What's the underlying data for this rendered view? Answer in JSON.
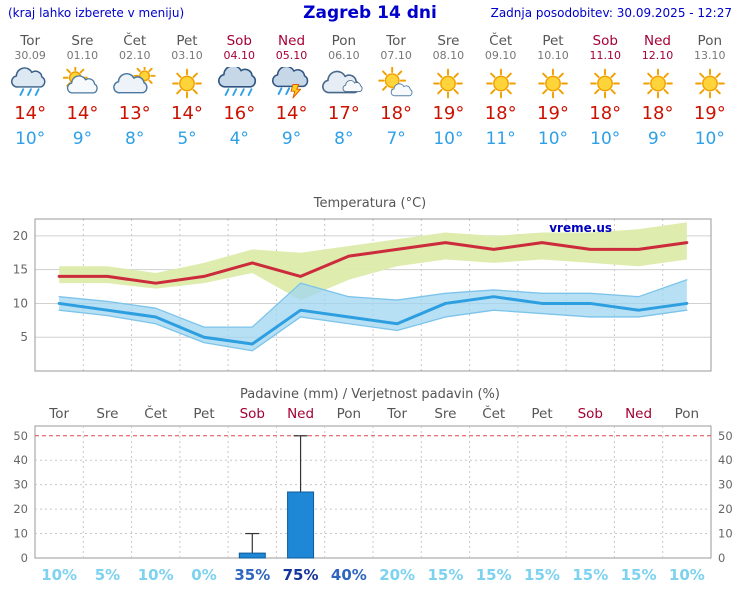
{
  "header": {
    "left_note": "(kraj lahko izberete v meniju)",
    "title": "Zagreb 14 dni",
    "updated": "Zadnja posodobitev: 30.09.2025 - 12:27"
  },
  "watermark": "vreme.us",
  "colors": {
    "header_blue": "#0000cc",
    "weekend_red": "#a50034",
    "weekday_gray": "#555555",
    "high_temp_red": "#cc1100",
    "low_temp_blue": "#2da0e8",
    "temp_line_red": "#cc2b3c",
    "temp_line_blue": "#2d9fe0",
    "band_green": "#dcebaa",
    "band_blue": "#9fd6f2",
    "bar_blue": "#1f88d6",
    "prob_low": "#7dd2ef",
    "prob_mid": "#2f67c0",
    "prob_high": "#15359d"
  },
  "days": [
    {
      "name": "Tor",
      "date": "30.09",
      "weekend": false,
      "icon": "rain",
      "high": "14°",
      "low": "10°"
    },
    {
      "name": "Sre",
      "date": "01.10",
      "weekend": false,
      "icon": "partly-cloudy",
      "high": "14°",
      "low": "9°"
    },
    {
      "name": "Čet",
      "date": "02.10",
      "weekend": false,
      "icon": "mostly-cloudy",
      "high": "13°",
      "low": "8°"
    },
    {
      "name": "Pet",
      "date": "03.10",
      "weekend": false,
      "icon": "sunny",
      "high": "14°",
      "low": "5°"
    },
    {
      "name": "Sob",
      "date": "04.10",
      "weekend": true,
      "icon": "heavy-rain",
      "high": "16°",
      "low": "4°"
    },
    {
      "name": "Ned",
      "date": "05.10",
      "weekend": true,
      "icon": "storm",
      "high": "14°",
      "low": "9°"
    },
    {
      "name": "Pon",
      "date": "06.10",
      "weekend": false,
      "icon": "cloudy",
      "high": "17°",
      "low": "8°"
    },
    {
      "name": "Tor",
      "date": "07.10",
      "weekend": false,
      "icon": "mostly-sunny",
      "high": "18°",
      "low": "7°"
    },
    {
      "name": "Sre",
      "date": "08.10",
      "weekend": false,
      "icon": "sunny",
      "high": "19°",
      "low": "10°"
    },
    {
      "name": "Čet",
      "date": "09.10",
      "weekend": false,
      "icon": "sunny",
      "high": "18°",
      "low": "11°"
    },
    {
      "name": "Pet",
      "date": "10.10",
      "weekend": false,
      "icon": "sunny",
      "high": "19°",
      "low": "10°"
    },
    {
      "name": "Sob",
      "date": "11.10",
      "weekend": true,
      "icon": "sunny",
      "high": "18°",
      "low": "10°"
    },
    {
      "name": "Ned",
      "date": "12.10",
      "weekend": true,
      "icon": "sunny",
      "high": "18°",
      "low": "9°"
    },
    {
      "name": "Pon",
      "date": "13.10",
      "weekend": false,
      "icon": "sunny",
      "high": "19°",
      "low": "10°"
    }
  ],
  "chart_data": [
    {
      "type": "line",
      "title": "Temperatura (°C)",
      "categories": [
        "Tor 30.09",
        "Sre 01.10",
        "Čet 02.10",
        "Pet 03.10",
        "Sob 04.10",
        "Ned 05.10",
        "Pon 06.10",
        "Tor 07.10",
        "Sre 08.10",
        "Čet 09.10",
        "Pet 10.10",
        "Sob 11.10",
        "Ned 12.10",
        "Pon 13.10"
      ],
      "series": [
        {
          "name": "max",
          "color": "#cc2b3c",
          "values": [
            14,
            14,
            13,
            14,
            16,
            14,
            17,
            18,
            19,
            18,
            19,
            18,
            18,
            19
          ]
        },
        {
          "name": "max_range_upper",
          "values": [
            15.5,
            15.5,
            14.5,
            16,
            18,
            17.5,
            18.5,
            19.5,
            20.5,
            20,
            20.5,
            20.5,
            21,
            22
          ]
        },
        {
          "name": "max_range_lower",
          "values": [
            13,
            13,
            12.2,
            13,
            14.5,
            10.5,
            13.5,
            15.5,
            16.5,
            16,
            16.5,
            16,
            15.5,
            16.5
          ]
        },
        {
          "name": "min",
          "color": "#2d9fe0",
          "values": [
            10,
            9,
            8,
            5,
            4,
            9,
            8,
            7,
            10,
            11,
            10,
            10,
            9,
            10
          ]
        },
        {
          "name": "min_range_upper",
          "values": [
            11,
            10.3,
            9.3,
            6.5,
            6.5,
            13,
            11,
            10.5,
            11.5,
            12,
            11.5,
            11.5,
            11,
            13.5
          ]
        },
        {
          "name": "min_range_lower",
          "values": [
            9,
            8.2,
            7,
            4.2,
            3,
            8,
            7,
            6,
            8,
            9,
            8.5,
            8,
            8,
            9
          ]
        }
      ],
      "ylim": [
        0,
        22.5
      ],
      "yticks": [
        5,
        10,
        15,
        20
      ],
      "grid": true,
      "legend": "none",
      "watermark": "vreme.us"
    },
    {
      "type": "bar",
      "title": "Padavine (mm) / Verjetnost padavin (%)",
      "categories": [
        "Tor",
        "Sre",
        "Čet",
        "Pet",
        "Sob",
        "Ned",
        "Pon",
        "Tor",
        "Sre",
        "Čet",
        "Pet",
        "Sob",
        "Ned",
        "Pon"
      ],
      "values": [
        0,
        0,
        0,
        0,
        2,
        27,
        0,
        0,
        0,
        0,
        0,
        0,
        0,
        0
      ],
      "whisker_max": [
        0,
        0,
        0,
        0,
        10,
        50,
        0,
        0,
        0,
        0,
        0,
        0,
        0,
        0
      ],
      "probabilities": [
        "10%",
        "5%",
        "10%",
        "0%",
        "35%",
        "75%",
        "40%",
        "20%",
        "15%",
        "15%",
        "15%",
        "15%",
        "15%",
        "10%"
      ],
      "ylim": [
        0,
        54
      ],
      "yticks": [
        0,
        10,
        20,
        30,
        40,
        50
      ],
      "grid": true,
      "legend": "none"
    }
  ]
}
